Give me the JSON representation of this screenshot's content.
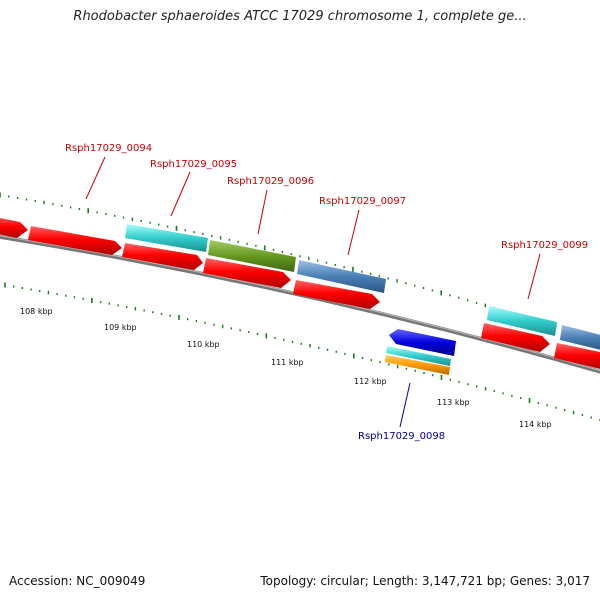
{
  "title": "Rhodobacter sphaeroides ATCC 17029 chromosome 1, complete ge...",
  "footer": {
    "accession": "Accession: NC_009049",
    "summary": "Topology: circular; Length: 3,147,721 bp; Genes: 3,017"
  },
  "ticks": [
    "108 kbp",
    "109 kbp",
    "110 kbp",
    "111 kbp",
    "112 kbp",
    "113 kbp",
    "114 kbp"
  ],
  "gene_labels": [
    {
      "name": "Rsph17029_0094",
      "strand": "plus",
      "color": "#cc0000"
    },
    {
      "name": "Rsph17029_0095",
      "strand": "plus",
      "color": "#cc0000"
    },
    {
      "name": "Rsph17029_0096",
      "strand": "plus",
      "color": "#cc0000"
    },
    {
      "name": "Rsph17029_0097",
      "strand": "plus",
      "color": "#cc0000"
    },
    {
      "name": "Rsph17029_0098",
      "strand": "minus",
      "color": "#000099"
    },
    {
      "name": "Rsph17029_0099",
      "strand": "plus",
      "color": "#cc0000"
    }
  ],
  "colors": {
    "cds": "#ff0000",
    "cyan": "#33cccc",
    "olive": "#669922",
    "steel": "#4a7fb5",
    "blue": "#0000dd",
    "orange": "#ff9900",
    "backbone": "#888888",
    "tick": "#1a7a1a"
  }
}
